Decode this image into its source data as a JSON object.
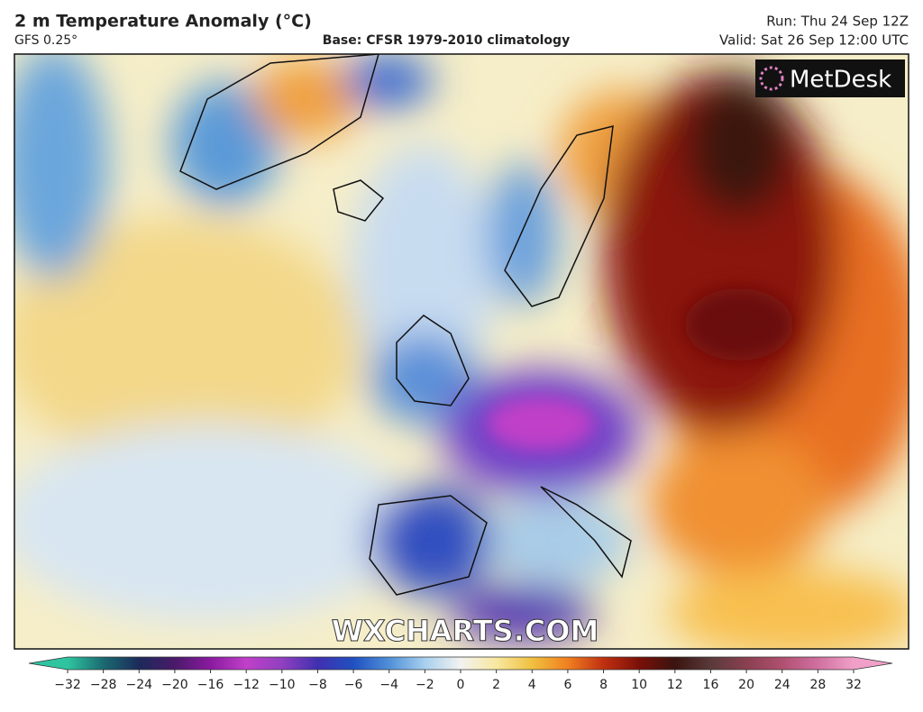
{
  "header": {
    "title": "2 m Temperature Anomaly (°C)",
    "model": "GFS 0.25°",
    "base": "Base: CFSR 1979-2010 climatology",
    "run": "Run: Thu 24 Sep 12Z",
    "valid": "Valid: Sat 26 Sep 12:00 UTC"
  },
  "map": {
    "logo": "MetDesk",
    "watermark": "WXCHARTS.COM"
  },
  "colorbar": {
    "ticks": [
      {
        "value": -32,
        "label": "−32"
      },
      {
        "value": -28,
        "label": "−28"
      },
      {
        "value": -24,
        "label": "−24"
      },
      {
        "value": -20,
        "label": "−20"
      },
      {
        "value": -16,
        "label": "−16"
      },
      {
        "value": -12,
        "label": "−12"
      },
      {
        "value": -10,
        "label": "−10"
      },
      {
        "value": -8,
        "label": "−8"
      },
      {
        "value": -6,
        "label": "−6"
      },
      {
        "value": -4,
        "label": "−4"
      },
      {
        "value": -2,
        "label": "−2"
      },
      0,
      2,
      4,
      6,
      8,
      10,
      12,
      16,
      20,
      24,
      28,
      32
    ],
    "colors": [
      "#2ec4a0",
      "#1a6a70",
      "#1b2a5a",
      "#4a1a6a",
      "#8a1aa0",
      "#c040c8",
      "#9040c0",
      "#4030b0",
      "#2050c0",
      "#5090d8",
      "#a8d0ee",
      "#f2f2f0",
      "#f8e8a0",
      "#f0c040",
      "#f08020",
      "#c03010",
      "#7a1008",
      "#3a1410",
      "#5a3a3a",
      "#8a4050",
      "#b05070",
      "#d070a0",
      "#f0a0c8"
    ]
  }
}
